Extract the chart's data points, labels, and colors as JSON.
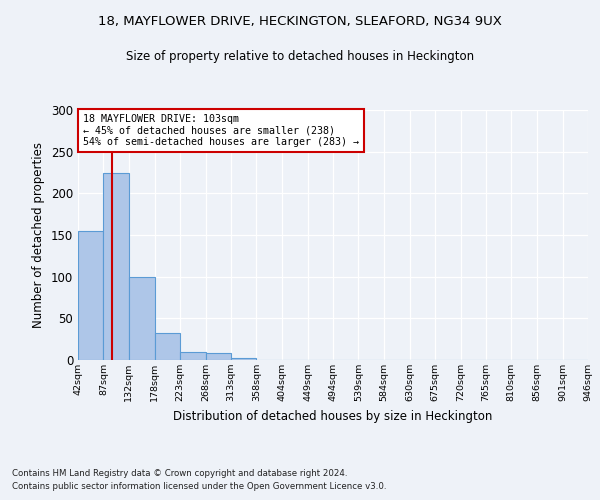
{
  "title": "18, MAYFLOWER DRIVE, HECKINGTON, SLEAFORD, NG34 9UX",
  "subtitle": "Size of property relative to detached houses in Heckington",
  "xlabel": "Distribution of detached houses by size in Heckington",
  "ylabel": "Number of detached properties",
  "bar_values": [
    155,
    225,
    100,
    33,
    10,
    8,
    3,
    0,
    0,
    0,
    0,
    0,
    0,
    0,
    0,
    0,
    0,
    0,
    0,
    0
  ],
  "bin_edges": [
    42,
    87,
    132,
    178,
    223,
    268,
    313,
    358,
    404,
    449,
    494,
    539,
    584,
    630,
    675,
    720,
    765,
    810,
    856,
    901,
    946
  ],
  "tick_labels": [
    "42sqm",
    "87sqm",
    "132sqm",
    "178sqm",
    "223sqm",
    "268sqm",
    "313sqm",
    "358sqm",
    "404sqm",
    "449sqm",
    "494sqm",
    "539sqm",
    "584sqm",
    "630sqm",
    "675sqm",
    "720sqm",
    "765sqm",
    "810sqm",
    "856sqm",
    "901sqm",
    "946sqm"
  ],
  "bar_color": "#aec6e8",
  "bar_edge_color": "#5b9bd5",
  "vline_x": 103,
  "vline_color": "#cc0000",
  "annotation_line1": "18 MAYFLOWER DRIVE: 103sqm",
  "annotation_line2": "← 45% of detached houses are smaller (238)",
  "annotation_line3": "54% of semi-detached houses are larger (283) →",
  "annotation_box_color": "#ffffff",
  "annotation_box_edge": "#cc0000",
  "ylim": [
    0,
    300
  ],
  "yticks": [
    0,
    50,
    100,
    150,
    200,
    250,
    300
  ],
  "footnote1": "Contains HM Land Registry data © Crown copyright and database right 2024.",
  "footnote2": "Contains public sector information licensed under the Open Government Licence v3.0.",
  "bg_color": "#eef2f8",
  "plot_bg_color": "#eef2f8",
  "title_fontsize": 9.5,
  "subtitle_fontsize": 8.5
}
